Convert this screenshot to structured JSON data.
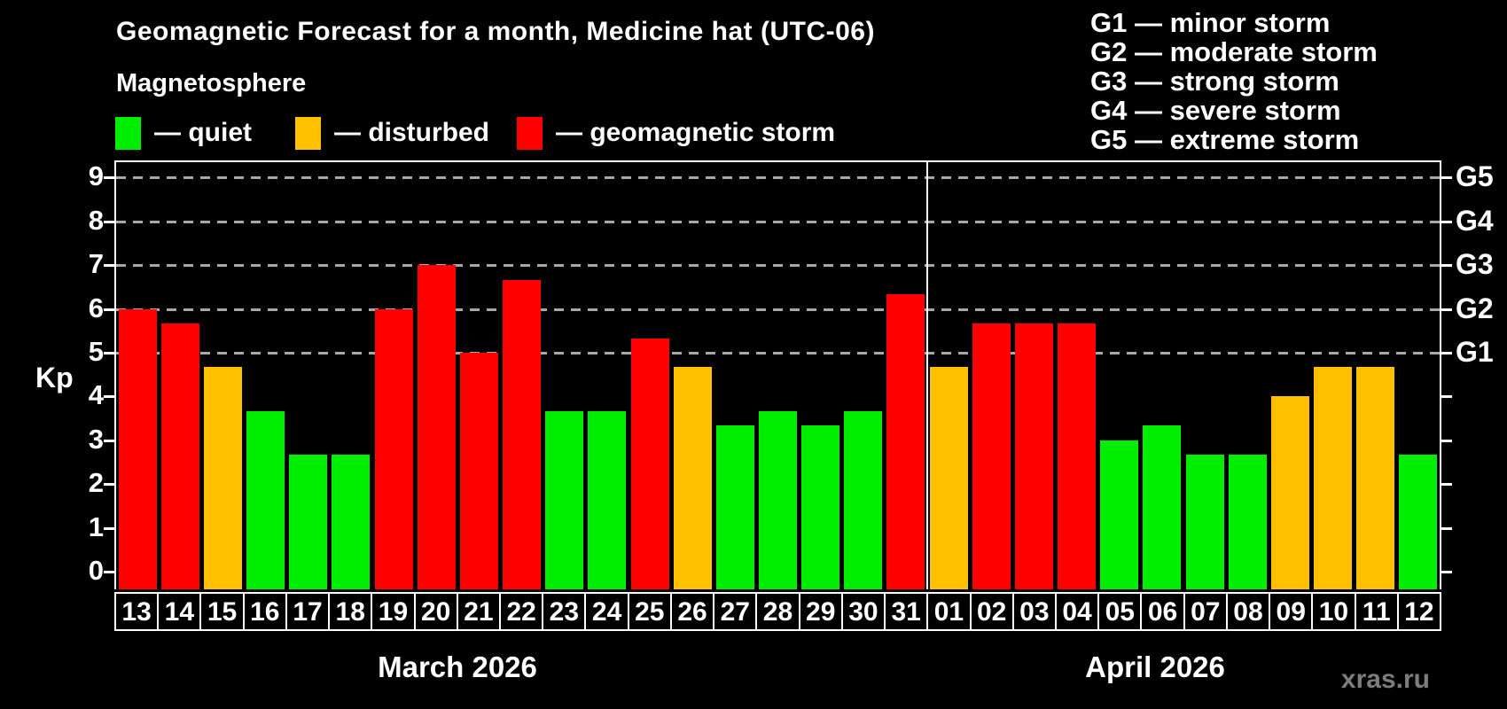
{
  "header": {
    "title": "Geomagnetic Forecast for a month, Medicine hat (UTC-06)",
    "subtitle": "Magnetosphere",
    "watermark": "xras.ru"
  },
  "legend": {
    "items": [
      {
        "status": "quiet",
        "label": "— quiet"
      },
      {
        "status": "disturbed",
        "label": "— disturbed"
      },
      {
        "status": "storm",
        "label": "— geomagnetic storm"
      }
    ]
  },
  "g_legend": [
    "G1 — minor storm",
    "G2 — moderate storm",
    "G3 — strong storm",
    "G4 — severe storm",
    "G5 — extreme storm"
  ],
  "chart_data": {
    "type": "bar",
    "title": "Geomagnetic Forecast for a month, Medicine hat (UTC-06)",
    "ylabel": "Kp",
    "ylim": [
      -0.4,
      9.4
    ],
    "yticks": [
      0,
      1,
      2,
      3,
      4,
      5,
      6,
      7,
      8,
      9
    ],
    "gridlines": [
      5,
      6,
      7,
      8,
      9
    ],
    "right_axis": [
      {
        "kp": 5,
        "label": "G1"
      },
      {
        "kp": 6,
        "label": "G2"
      },
      {
        "kp": 7,
        "label": "G3"
      },
      {
        "kp": 8,
        "label": "G4"
      },
      {
        "kp": 9,
        "label": "G5"
      }
    ],
    "categories": [
      "13",
      "14",
      "15",
      "16",
      "17",
      "18",
      "19",
      "20",
      "21",
      "22",
      "23",
      "24",
      "25",
      "26",
      "27",
      "28",
      "29",
      "30",
      "31",
      "01",
      "02",
      "03",
      "04",
      "05",
      "06",
      "07",
      "08",
      "09",
      "10",
      "11",
      "12"
    ],
    "values": [
      6.0,
      5.67,
      4.67,
      3.67,
      2.67,
      2.67,
      6.0,
      7.0,
      5.0,
      6.67,
      3.67,
      3.67,
      5.33,
      4.67,
      3.33,
      3.67,
      3.33,
      3.67,
      6.33,
      4.67,
      5.67,
      5.67,
      5.67,
      3.0,
      3.33,
      2.67,
      2.67,
      4.0,
      4.67,
      4.67,
      2.67
    ],
    "statuses": [
      "storm",
      "storm",
      "disturbed",
      "quiet",
      "quiet",
      "quiet",
      "storm",
      "storm",
      "storm",
      "storm",
      "quiet",
      "quiet",
      "storm",
      "disturbed",
      "quiet",
      "quiet",
      "quiet",
      "quiet",
      "storm",
      "disturbed",
      "storm",
      "storm",
      "storm",
      "quiet",
      "quiet",
      "quiet",
      "quiet",
      "disturbed",
      "disturbed",
      "disturbed",
      "quiet"
    ],
    "colors": {
      "quiet": "#00ee00",
      "disturbed": "#ffc000",
      "storm": "#ff0000"
    },
    "month_split_index": 19,
    "months": [
      {
        "label": "March 2026",
        "days": 19
      },
      {
        "label": "April 2026",
        "days": 12
      }
    ],
    "grid": "dashed horizontal lines at G storm levels",
    "legend_position": "top-left"
  }
}
